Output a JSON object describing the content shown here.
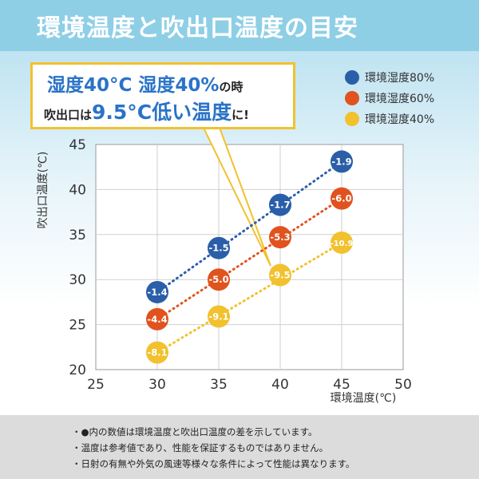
{
  "header": {
    "title": "環境温度と吹出口温度の目安"
  },
  "callout": {
    "line1_main": "湿度40°C 湿度40%",
    "line1_suffix": "の時",
    "line2_prefix": "吹出口は",
    "line2_highlight": "9.5°C低い温度",
    "line2_suffix": "に!"
  },
  "colors": {
    "header_bg": "#8ecfe6",
    "callout_border": "#f2c12e",
    "accent_text": "#2a73c8",
    "footer_bg": "#dcdcdc"
  },
  "chart_data": {
    "type": "scatter",
    "xlabel": "環境温度(℃)",
    "ylabel": "吹出口温度(℃)",
    "xlim": [
      25,
      50
    ],
    "ylim": [
      20,
      45
    ],
    "x_ticks": [
      25,
      30,
      35,
      40,
      45,
      50
    ],
    "y_ticks": [
      20,
      25,
      30,
      35,
      40,
      45
    ],
    "grid": true,
    "legend_position": "top-right",
    "connector": "dotted",
    "x": [
      30,
      35,
      40,
      45
    ],
    "series": [
      {
        "name": "環境湿度80%",
        "color": "#2a5ea8",
        "values": [
          28.6,
          33.5,
          38.3,
          43.1
        ],
        "labels": [
          "-1.4",
          "-1.5",
          "-1.7",
          "-1.9"
        ]
      },
      {
        "name": "環境湿度60%",
        "color": "#e0531e",
        "values": [
          25.6,
          30.0,
          34.7,
          39.0
        ],
        "labels": [
          "-4.4",
          "-5.0",
          "-5.3",
          "-6.0"
        ]
      },
      {
        "name": "環境湿度40%",
        "color": "#f2c12e",
        "values": [
          21.9,
          25.9,
          30.5,
          34.1
        ],
        "labels": [
          "-8.1",
          "-9.1",
          "-9.5",
          "-10.9"
        ]
      }
    ]
  },
  "notes": [
    "・●内の数値は環境温度と吹出口温度の差を示しています。",
    "・温度は参考値であり、性能を保証するものではありません。",
    "・日射の有無や外気の風速等様々な条件によって性能は異なります。"
  ]
}
